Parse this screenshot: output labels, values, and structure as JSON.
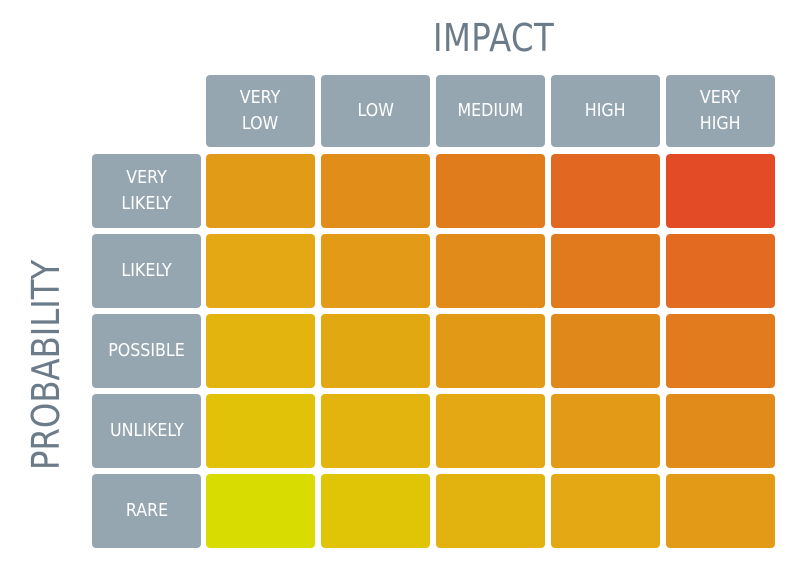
{
  "impact_title": "IMPACT",
  "probability_title": "PROBABILITY",
  "impact_levels": [
    "VERY\nLOW",
    "LOW",
    "MEDIUM",
    "HIGH",
    "VERY\nHIGH"
  ],
  "probability_levels": [
    "VERY\nLIKELY",
    "LIKELY",
    "POSSIBLE",
    "UNLIKELY",
    "RARE"
  ],
  "colors": {
    "header_bg": "#96a6b0",
    "title_text": "#6b7c88",
    "matrix": [
      [
        "#e29b17",
        "#e18d1a",
        "#e17c1d",
        "#e26822",
        "#e34b26"
      ],
      [
        "#e3a813",
        "#e29a17",
        "#e18c1a",
        "#e17a1d",
        "#e26a21"
      ],
      [
        "#e3b40e",
        "#e2a812",
        "#e29a16",
        "#e1881b",
        "#e17b1d"
      ],
      [
        "#e1c208",
        "#e2b40d",
        "#e3a813",
        "#e29a17",
        "#e18c1a"
      ],
      [
        "#d8dc00",
        "#e0c506",
        "#e2b30e",
        "#e3a813",
        "#e29a17"
      ]
    ]
  }
}
